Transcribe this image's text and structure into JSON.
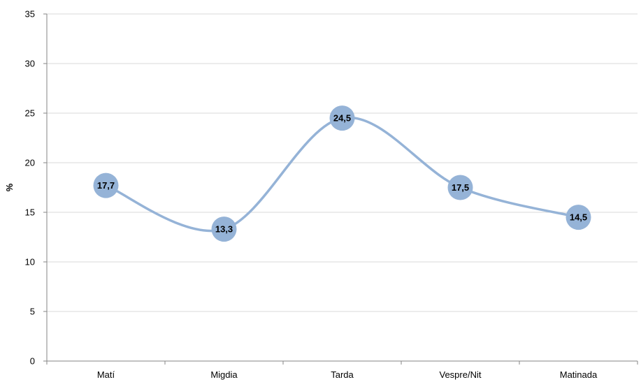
{
  "chart_data": {
    "type": "line",
    "categories": [
      "Matí",
      "Migdia",
      "Tarda",
      "Vespre/Nit",
      "Matinada"
    ],
    "series": [
      {
        "values": [
          17.7,
          13.3,
          24.5,
          17.5,
          14.5
        ],
        "labels": [
          "17,7",
          "13,3",
          "24,5",
          "17,5",
          "14,5"
        ],
        "color": "#95b3d7"
      }
    ],
    "title": "",
    "xlabel": "",
    "ylabel": "%",
    "ylim": [
      0,
      35
    ],
    "yticks": [
      "0",
      "5",
      "10",
      "15",
      "20",
      "25",
      "30",
      "35"
    ],
    "grid": true,
    "smooth": true,
    "legend": "none"
  }
}
